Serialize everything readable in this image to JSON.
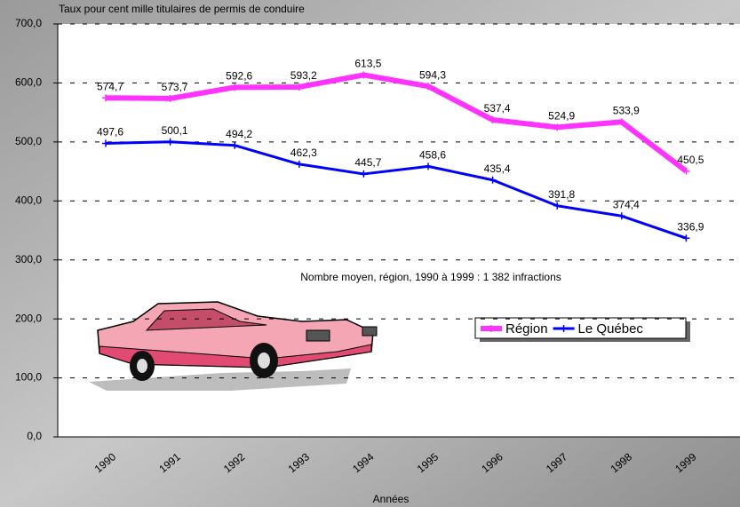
{
  "chart_data": {
    "type": "line",
    "y_axis_title": "Taux pour cent mille titulaires de permis de conduire",
    "x_axis_title": "Années",
    "annotation": "Nombre moyen, région,  1990 à 1999 :  1 382 infractions",
    "categories": [
      "1990",
      "1991",
      "1992",
      "1993",
      "1994",
      "1995",
      "1996",
      "1997",
      "1998",
      "1999"
    ],
    "series": [
      {
        "name": "Région",
        "color": "#ff33ff",
        "width": 6,
        "values": [
          574.7,
          573.7,
          592.6,
          593.2,
          613.5,
          594.3,
          537.4,
          524.9,
          533.9,
          450.5
        ],
        "value_labels": [
          "574,7",
          "573,7",
          "592,6",
          "593,2",
          "613,5",
          "594,3",
          "537,4",
          "524,9",
          "533,9",
          "450,5"
        ]
      },
      {
        "name": "Le Québec",
        "color": "#0000ff",
        "width": 3,
        "values": [
          497.6,
          500.1,
          494.2,
          462.3,
          445.7,
          458.6,
          435.4,
          391.8,
          374.4,
          336.9
        ],
        "value_labels": [
          "497,6",
          "500,1",
          "494,2",
          "462,3",
          "445,7",
          "458,6",
          "435,4",
          "391,8",
          "374,4",
          "336,9"
        ]
      }
    ],
    "ylim": [
      0,
      700
    ],
    "yticks": [
      {
        "value": 0,
        "label": "0,0"
      },
      {
        "value": 100,
        "label": "100,0"
      },
      {
        "value": 200,
        "label": "200,0"
      },
      {
        "value": 300,
        "label": "300,0"
      },
      {
        "value": 400,
        "label": "400,0"
      },
      {
        "value": 500,
        "label": "500,0"
      },
      {
        "value": 600,
        "label": "600,0"
      },
      {
        "value": 700,
        "label": "700,0"
      }
    ],
    "grid": true
  }
}
